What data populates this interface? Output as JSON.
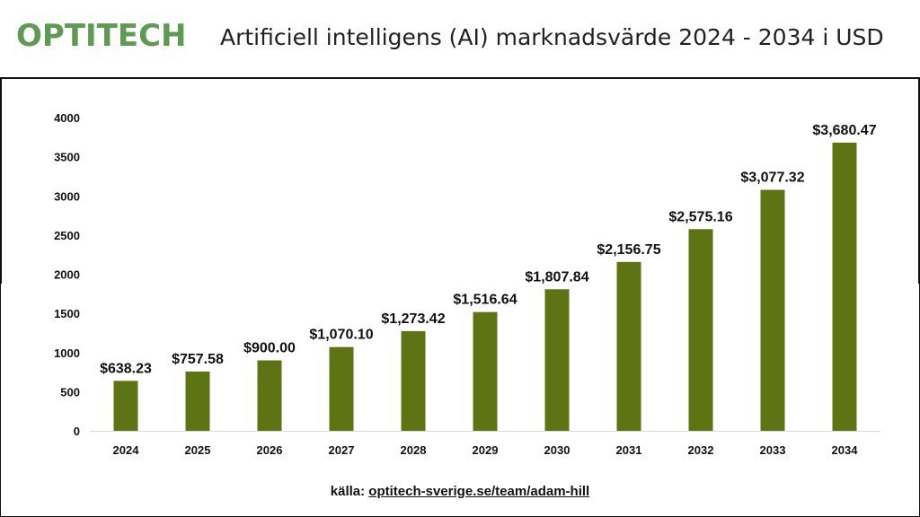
{
  "header": {
    "logo_text": "OPTITECH",
    "title": "Artificiell intelligens (AI) marknadsvärde 2024 - 2034 i USD"
  },
  "source": {
    "prefix": "källa:",
    "link": "optitech-sverige.se/team/adam-hill"
  },
  "colors": {
    "bar": "#5e7414",
    "logo": "#5f9a52"
  },
  "chart_data": {
    "type": "bar",
    "categories": [
      "2024",
      "2025",
      "2026",
      "2027",
      "2028",
      "2029",
      "2030",
      "2031",
      "2032",
      "2033",
      "2034"
    ],
    "values": [
      638.23,
      757.58,
      900.0,
      1070.1,
      1273.42,
      1516.64,
      1807.84,
      2156.75,
      2575.16,
      3077.32,
      3680.47
    ],
    "data_labels": [
      "$638.23",
      "$757.58",
      "$900.00",
      "$1,070.10",
      "$1,273.42",
      "$1,516.64",
      "$1,807.84",
      "$2,156.75",
      "$2,575.16",
      "$3,077.32",
      "$3,680.47"
    ],
    "yticks": [
      "0",
      "500",
      "1000",
      "1500",
      "2000",
      "2500",
      "3000",
      "3500",
      "4000"
    ],
    "ylim": [
      0,
      4000
    ],
    "grid": false,
    "legend": "none"
  }
}
